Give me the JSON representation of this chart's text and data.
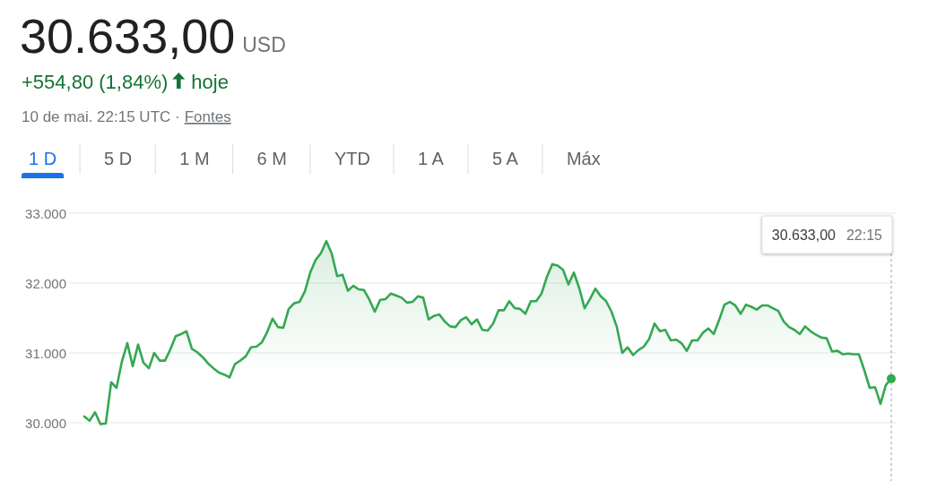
{
  "chart_data": {
    "type": "area",
    "title": "30.633,00",
    "subtitle": "+554,80 (1,84%)",
    "categories": [
      null,
      null,
      null,
      null,
      null,
      null,
      null,
      null,
      null,
      null,
      null,
      null,
      null,
      null,
      null,
      null,
      null,
      null,
      null,
      null,
      null,
      null,
      null,
      null,
      null,
      null,
      null,
      null,
      null,
      null,
      null,
      null,
      null,
      null,
      null,
      null,
      null,
      null,
      null,
      null,
      null,
      null,
      null,
      null,
      null,
      null,
      null,
      null,
      null,
      null,
      null,
      null,
      null,
      null,
      null,
      null,
      null,
      null,
      null,
      null,
      null,
      null,
      null,
      null,
      null,
      null,
      null,
      null,
      null,
      null,
      null,
      null,
      null,
      null,
      null,
      null,
      null,
      null,
      null,
      null,
      null,
      null,
      null,
      null,
      null,
      null,
      null,
      null,
      null,
      null,
      null,
      null,
      null,
      null,
      null,
      null,
      null,
      null,
      null,
      null,
      null,
      null,
      null,
      null,
      null,
      null,
      null,
      null,
      null,
      null,
      null,
      null,
      null,
      null,
      null,
      null,
      null,
      null,
      null,
      null,
      null,
      null,
      null,
      null,
      null,
      null,
      null,
      null,
      null,
      null,
      null,
      null,
      null,
      null,
      null,
      null,
      null,
      null,
      null,
      null,
      null,
      null,
      null,
      null,
      null,
      null,
      null,
      null,
      null,
      null,
      null
    ],
    "series": [
      {
        "color": "#34a853",
        "values": [
          30090,
          30030,
          30150,
          29980,
          29990,
          30580,
          30500,
          30880,
          31140,
          30810,
          31120,
          30860,
          30780,
          31000,
          30890,
          30890,
          31050,
          31240,
          31270,
          31310,
          31060,
          31010,
          30940,
          30850,
          30780,
          30720,
          30690,
          30650,
          30840,
          30890,
          30950,
          31080,
          31090,
          31150,
          31300,
          31490,
          31370,
          31360,
          31630,
          31710,
          31730,
          31880,
          32150,
          32330,
          32430,
          32600,
          32420,
          32100,
          32120,
          31890,
          31960,
          31910,
          31900,
          31760,
          31590,
          31760,
          31770,
          31850,
          31820,
          31790,
          31720,
          31730,
          31810,
          31790,
          31480,
          31530,
          31550,
          31450,
          31380,
          31370,
          31470,
          31510,
          31410,
          31480,
          31330,
          31320,
          31420,
          31610,
          31610,
          31740,
          31640,
          31630,
          31560,
          31740,
          31740,
          31850,
          32090,
          32270,
          32250,
          32190,
          31980,
          32150,
          31930,
          31640,
          31770,
          31920,
          31810,
          31740,
          31590,
          31370,
          31000,
          31080,
          30970,
          31040,
          31090,
          31200,
          31420,
          31310,
          31330,
          31180,
          31190,
          31140,
          31030,
          31180,
          31180,
          31290,
          31350,
          31270,
          31470,
          31690,
          31730,
          31680,
          31560,
          31690,
          31660,
          31620,
          31680,
          31680,
          31640,
          31600,
          31450,
          31370,
          31330,
          31270,
          31380,
          31310,
          31260,
          31220,
          31210,
          31020,
          31030,
          30980,
          30990,
          30980,
          30980,
          30750,
          30500,
          30510,
          30270,
          30540,
          30630
        ]
      }
    ],
    "ylim": [
      29200,
      33000
    ],
    "yticks": [
      {
        "value": 30000,
        "label": "30.000"
      },
      {
        "value": 31000,
        "label": "31.000"
      },
      {
        "value": 32000,
        "label": "32.000"
      },
      {
        "value": 33000,
        "label": "33.000"
      }
    ],
    "grid": "y",
    "annotations": [
      "USD",
      "hoje",
      "10 de mai. 22:15 UTC ·",
      "Fontes",
      "1 D",
      "5 D",
      "1 M",
      "6 M",
      "YTD",
      "1 A",
      "5 A",
      "Máx",
      "30.633,00",
      "22:15"
    ]
  }
}
